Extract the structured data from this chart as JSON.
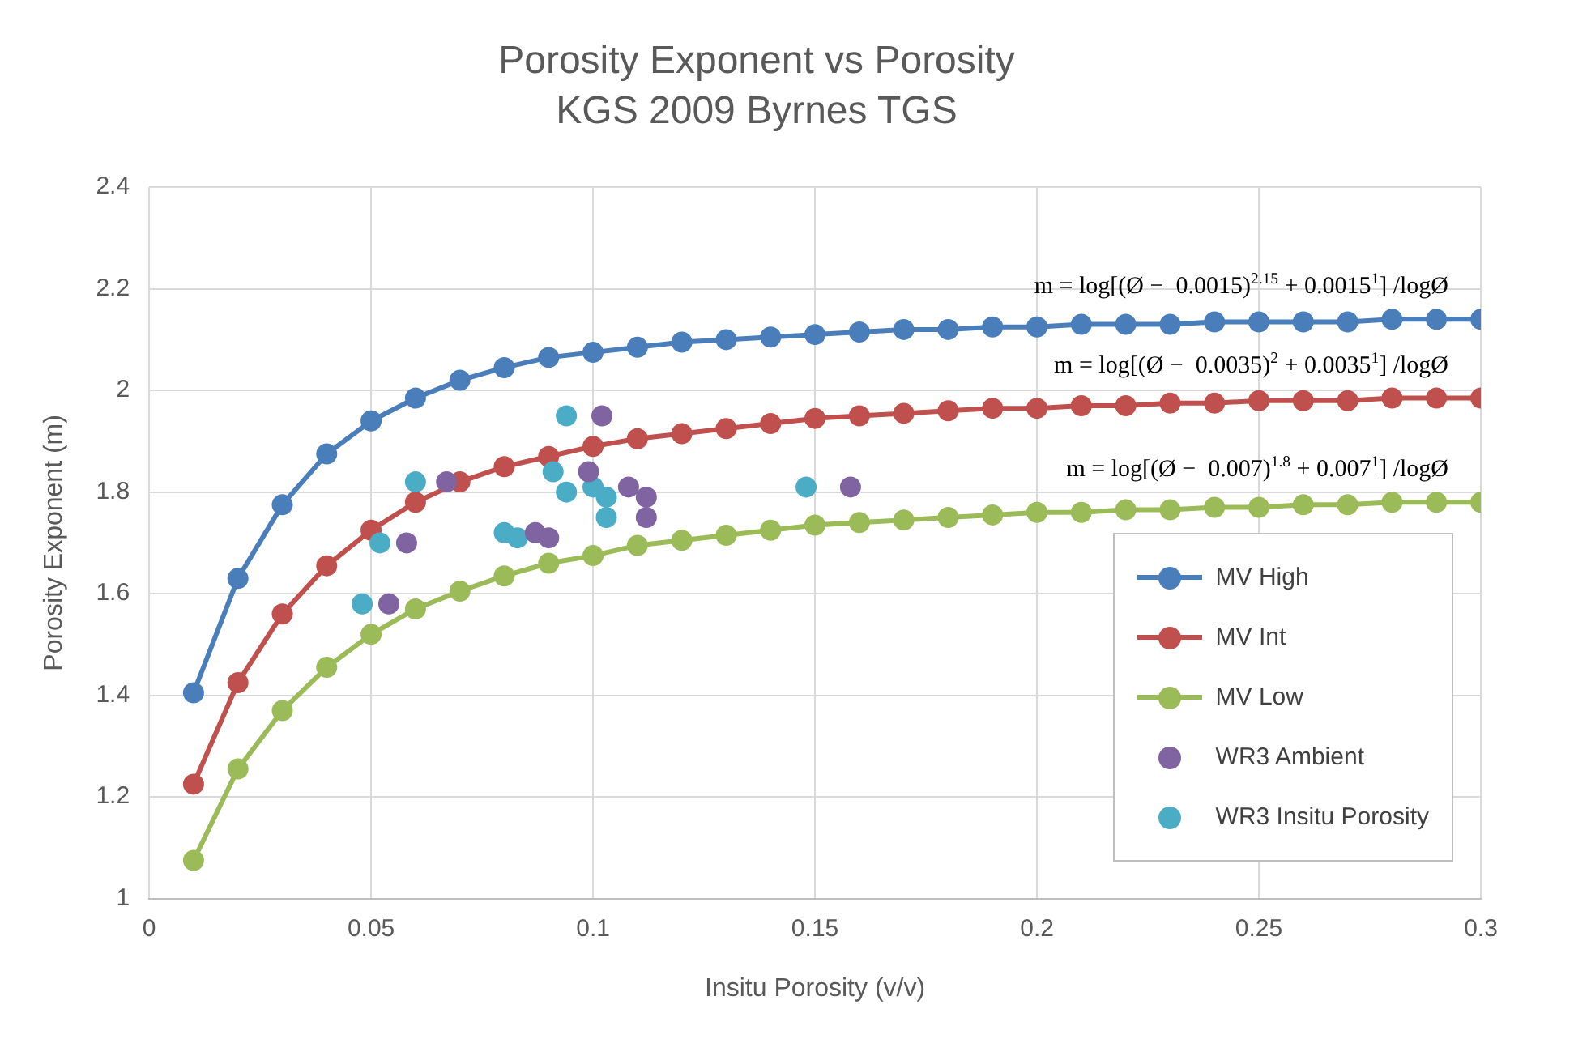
{
  "chart_data": {
    "type": "line",
    "title": "Porosity Exponent vs Porosity",
    "subtitle": "KGS 2009 Byrnes TGS",
    "xlabel": "Insitu Porosity (v/v)",
    "ylabel": "Porosity Exponent (m)",
    "x": [
      0.01,
      0.02,
      0.03,
      0.04,
      0.05,
      0.06,
      0.07,
      0.08,
      0.09,
      0.1,
      0.11,
      0.12,
      0.13,
      0.14,
      0.15,
      0.16,
      0.17,
      0.18,
      0.19,
      0.2,
      0.21,
      0.22,
      0.23,
      0.24,
      0.25,
      0.26,
      0.27,
      0.28,
      0.29,
      0.3
    ],
    "series": [
      {
        "name": "MV High",
        "color": "#4a7ebb",
        "values": [
          1.405,
          1.63,
          1.775,
          1.875,
          1.94,
          1.985,
          2.02,
          2.045,
          2.065,
          2.075,
          2.085,
          2.095,
          2.1,
          2.105,
          2.11,
          2.115,
          2.12,
          2.12,
          2.125,
          2.125,
          2.13,
          2.13,
          2.13,
          2.135,
          2.135,
          2.135,
          2.135,
          2.14,
          2.14,
          2.14
        ]
      },
      {
        "name": "MV Int",
        "color": "#c0504d",
        "values": [
          1.225,
          1.425,
          1.56,
          1.655,
          1.725,
          1.78,
          1.82,
          1.85,
          1.87,
          1.89,
          1.905,
          1.915,
          1.925,
          1.935,
          1.945,
          1.95,
          1.955,
          1.96,
          1.965,
          1.965,
          1.97,
          1.97,
          1.975,
          1.975,
          1.98,
          1.98,
          1.98,
          1.985,
          1.985,
          1.985
        ]
      },
      {
        "name": "MV Low",
        "color": "#9bbb59",
        "values": [
          1.075,
          1.255,
          1.37,
          1.455,
          1.52,
          1.57,
          1.605,
          1.635,
          1.66,
          1.675,
          1.695,
          1.705,
          1.715,
          1.725,
          1.735,
          1.74,
          1.745,
          1.75,
          1.755,
          1.76,
          1.76,
          1.765,
          1.765,
          1.77,
          1.77,
          1.775,
          1.775,
          1.78,
          1.78,
          1.78
        ]
      },
      {
        "name": "WR3 Ambient",
        "type": "scatter",
        "color": "#8064a2",
        "x": [
          0.067,
          0.102,
          0.058,
          0.054,
          0.087,
          0.09,
          0.099,
          0.108,
          0.112,
          0.112,
          0.158
        ],
        "values": [
          1.82,
          1.95,
          1.7,
          1.58,
          1.72,
          1.71,
          1.84,
          1.81,
          1.79,
          1.75,
          1.81
        ]
      },
      {
        "name": "WR3 Insitu Porosity",
        "type": "scatter",
        "color": "#4bacc6",
        "x": [
          0.06,
          0.052,
          0.048,
          0.08,
          0.083,
          0.094,
          0.091,
          0.094,
          0.1,
          0.103,
          0.103,
          0.148
        ],
        "values": [
          1.82,
          1.7,
          1.58,
          1.72,
          1.71,
          1.95,
          1.84,
          1.8,
          1.81,
          1.79,
          1.75,
          1.81
        ]
      }
    ],
    "xlim": [
      0,
      0.3
    ],
    "xticks": [
      0,
      0.05,
      0.1,
      0.15,
      0.2,
      0.25,
      0.3
    ],
    "ylim": [
      1,
      2.4
    ],
    "yticks": [
      1,
      1.2,
      1.4,
      1.6,
      1.8,
      2,
      2.2,
      2.4
    ],
    "annotations": [
      "m = log[(Ø −  0.0015)$^{2.15}$ + 0.0015$^{1}$] /logØ",
      "m = log[(Ø −  0.0035)$^{2}$ + 0.0035$^{1}$] /logØ",
      "m = log[(Ø −  0.007)$^{1.8}$ + 0.007$^{1}$] /logØ"
    ],
    "grid": true,
    "legend": "bottom right",
    "marker": "circle",
    "line_style": "solid"
  }
}
